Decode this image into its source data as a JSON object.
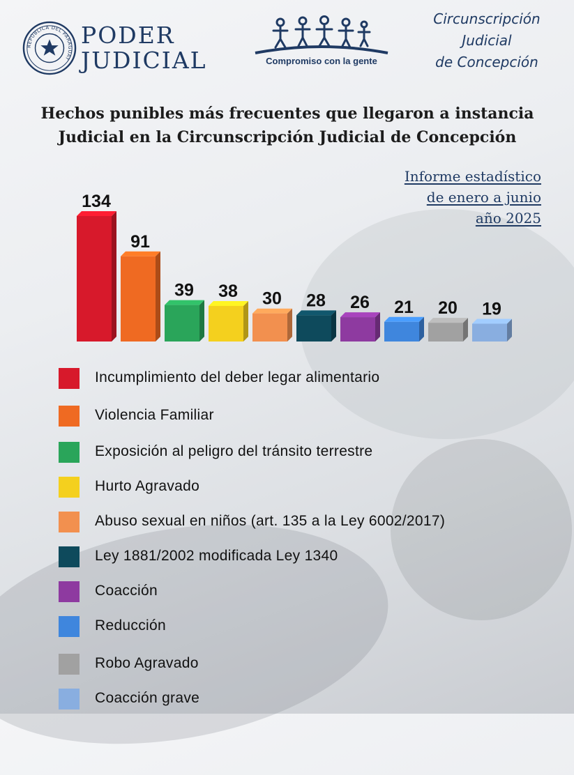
{
  "header": {
    "logo_line1": "PODER",
    "logo_line2": "JUDICIAL",
    "seal_text": "REPÚBLICA DEL PARAGUAY",
    "slogan": "Compromiso con la gente",
    "circ_line1": "Circunscripción",
    "circ_line2": "Judicial",
    "circ_line3": "de Concepción"
  },
  "title": {
    "line1": "Hechos punibles más frecuentes que llegaron a instancia",
    "line2": "Judicial en la Circunscripción Judicial de Concepción"
  },
  "informe": {
    "line1": "Informe estadístico",
    "line2": "de enero a junio",
    "line3": "año 2025"
  },
  "chart_data": {
    "type": "bar",
    "title": "Hechos punibles más frecuentes que llegaron a instancia Judicial en la Circunscripción Judicial de Concepción",
    "categories": [
      "Incumplimiento del deber legar alimentario",
      "Violencia Familiar",
      "Exposición al peligro del tránsito terrestre",
      "Hurto Agravado",
      "Abuso sexual en niños (art. 135 a la Ley 6002/2017)",
      "Ley 1881/2002 modificada Ley  1340",
      "Coacción",
      "Reducción",
      "Robo Agravado",
      "Coacción grave"
    ],
    "values": [
      134,
      91,
      39,
      38,
      30,
      28,
      26,
      21,
      20,
      19
    ],
    "colors": [
      "#d7192b",
      "#ef6a22",
      "#2aa55a",
      "#f4d01e",
      "#f2904f",
      "#0e4a5c",
      "#8e3aa0",
      "#3f86dd",
      "#a1a1a1",
      "#89aee0"
    ],
    "xlabel": "",
    "ylabel": "",
    "ylim": [
      0,
      134
    ],
    "grid": false,
    "legend": "bottom"
  }
}
